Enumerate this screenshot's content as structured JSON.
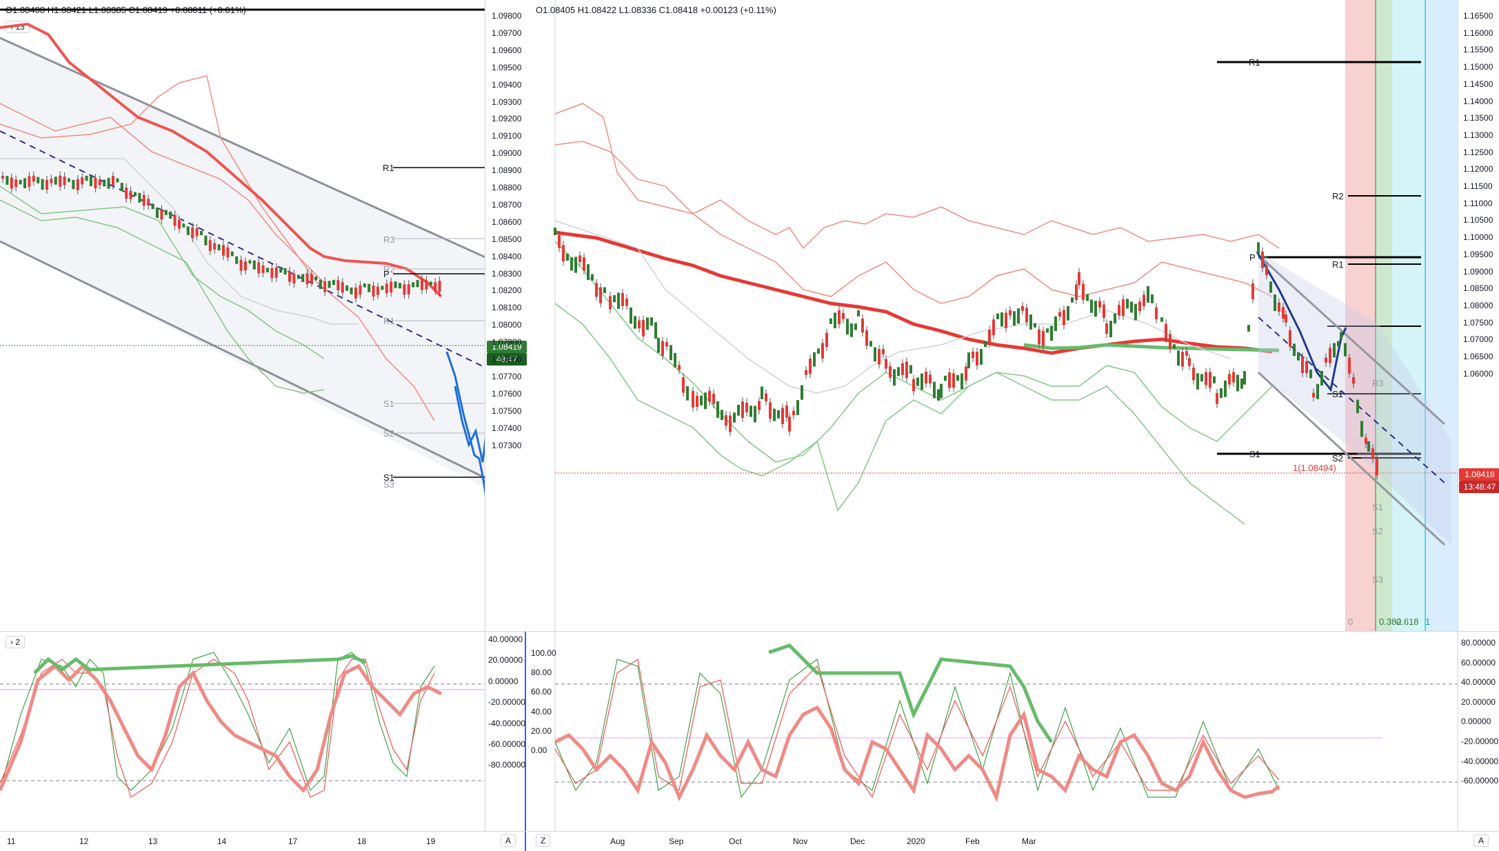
{
  "left": {
    "ohlc": "O1.08408  H1.08421  L1.08385  C1.08419  +0.00011 (+0.01%)",
    "collapse_label": "13",
    "price_axis": [
      "1.09800",
      "1.09700",
      "1.09600",
      "1.09500",
      "1.09400",
      "1.09300",
      "1.09200",
      "1.09100",
      "1.09000",
      "1.08900",
      "1.08800",
      "1.08700",
      "1.08600",
      "1.08500",
      "1.08400",
      "1.08300",
      "1.08200",
      "1.08100",
      "1.08000",
      "1.07900",
      "1.07800",
      "1.07700",
      "1.07600",
      "1.07500",
      "1.07400",
      "1.07300"
    ],
    "price_badge": "1.08419",
    "timer_badge": "48:47",
    "pivot_labels": {
      "r1": "R1",
      "r3": "R3",
      "r2": "R2",
      "p": "P",
      "r1b": "R1",
      "s1": "S1",
      "s2": "S2",
      "s1b": "S1",
      "s3": "S3"
    },
    "osc_collapse": "2",
    "osc_axis": [
      "40.00000",
      "20.00000",
      "0.00000",
      "-20.00000",
      "-40.00000",
      "-60.00000",
      "-80.00000"
    ],
    "time_axis": [
      "11",
      "12",
      "13",
      "14",
      "17",
      "18",
      "19"
    ],
    "corner_btn": "A",
    "colors": {
      "up": "#2e7d32",
      "down": "#e53935",
      "blue": "#1e6fd9"
    }
  },
  "right": {
    "ohlc": "O1.08405  H1.08422  L1.08336  C1.08418  +0.00123 (+0.11%)",
    "price_axis": [
      "1.16500",
      "1.16000",
      "1.15500",
      "1.15000",
      "1.14500",
      "1.14000",
      "1.13500",
      "1.13000",
      "1.12500",
      "1.12000",
      "1.11500",
      "1.11000",
      "1.10500",
      "1.10000",
      "1.09500",
      "1.09000",
      "1.08500",
      "1.08000",
      "1.07500",
      "1.07000",
      "1.06500",
      "1.06000"
    ],
    "price_badge": "1.08418",
    "timer_badge": "13:48:47",
    "level_labels": {
      "r1": "R1",
      "r2": "R2",
      "r1b": "R1",
      "s1": "S1",
      "s1b": "S1",
      "s2": "S2",
      "p": "P",
      "r3": "R3",
      "s1c": "S1",
      "s2b": "S2",
      "s3": "S3"
    },
    "fib_label": "1(1.08494)",
    "fib_zero": "0",
    "fib_levels": "0.382",
    "fib_618": "0.618",
    "fib_one": "1",
    "osc_left_axis": [
      "100.00",
      "80.00",
      "60.00",
      "40.00",
      "20.00",
      "0.00"
    ],
    "osc_right_axis": [
      "80.00000",
      "60.00000",
      "40.00000",
      "20.00000",
      "0.00000",
      "-20.00000",
      "-40.00000",
      "-60.00000"
    ],
    "time_axis": [
      "Aug",
      "Sep",
      "Oct",
      "Nov",
      "Dec",
      "2020",
      "Feb",
      "Mar"
    ],
    "corner_left": "Z",
    "corner_right": "A"
  }
}
